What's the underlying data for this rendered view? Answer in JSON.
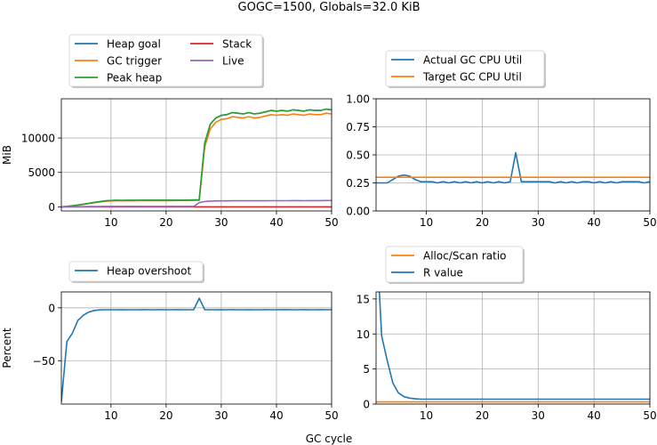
{
  "figure": {
    "title": "GOGC=1500, Globals=32.0 KiB",
    "xlabel": "GC cycle"
  },
  "chart_data": [
    {
      "type": "line",
      "ylabel": "MiB",
      "xlim": [
        1,
        50
      ],
      "ylim": [
        -600,
        15700
      ],
      "xticks": [
        10,
        20,
        30,
        40,
        50
      ],
      "yticks": [
        0,
        5000,
        10000
      ],
      "grid": true,
      "legend": {
        "placement": "outside-top",
        "columns": 2
      },
      "series": [
        {
          "name": "Heap goal",
          "color": "#1f77b4",
          "x": [
            1,
            2,
            3,
            4,
            5,
            6,
            7,
            8,
            9,
            10,
            11,
            12,
            13,
            14,
            15,
            16,
            17,
            18,
            19,
            20,
            21,
            22,
            23,
            24,
            25,
            26,
            27,
            28,
            29,
            30,
            31,
            32,
            33,
            34,
            35,
            36,
            37,
            38,
            39,
            40,
            41,
            42,
            43,
            44,
            45,
            46,
            47,
            48,
            49,
            50
          ],
          "y": [
            0,
            60,
            150,
            260,
            380,
            500,
            640,
            760,
            860,
            920,
            940,
            930,
            950,
            940,
            950,
            960,
            970,
            960,
            970,
            960,
            960,
            970,
            970,
            980,
            990,
            1000,
            9300,
            12000,
            12900,
            13300,
            13400,
            13700,
            13600,
            13500,
            13700,
            13500,
            13600,
            13800,
            14000,
            13900,
            14000,
            13900,
            14100,
            14000,
            13900,
            14100,
            14000,
            14000,
            14200,
            14100
          ]
        },
        {
          "name": "GC trigger",
          "color": "#ff7f0e",
          "x": [
            1,
            2,
            3,
            4,
            5,
            6,
            7,
            8,
            9,
            10,
            11,
            12,
            13,
            14,
            15,
            16,
            17,
            18,
            19,
            20,
            21,
            22,
            23,
            24,
            25,
            26,
            27,
            28,
            29,
            30,
            31,
            32,
            33,
            34,
            35,
            36,
            37,
            38,
            39,
            40,
            41,
            42,
            43,
            44,
            45,
            46,
            47,
            48,
            49,
            50
          ],
          "y": [
            0,
            55,
            140,
            240,
            350,
            470,
            600,
            710,
            800,
            860,
            880,
            870,
            890,
            880,
            890,
            900,
            910,
            900,
            910,
            900,
            900,
            910,
            910,
            920,
            930,
            940,
            8700,
            11300,
            12300,
            12700,
            12800,
            13100,
            13000,
            12900,
            13100,
            12900,
            13000,
            13200,
            13400,
            13300,
            13400,
            13300,
            13500,
            13400,
            13300,
            13500,
            13400,
            13400,
            13600,
            13500
          ]
        },
        {
          "name": "Peak heap",
          "color": "#2ca02c",
          "x": [
            1,
            2,
            3,
            4,
            5,
            6,
            7,
            8,
            9,
            10,
            11,
            12,
            13,
            14,
            15,
            16,
            17,
            18,
            19,
            20,
            21,
            22,
            23,
            24,
            25,
            26,
            27,
            28,
            29,
            30,
            31,
            32,
            33,
            34,
            35,
            36,
            37,
            38,
            39,
            40,
            41,
            42,
            43,
            44,
            45,
            46,
            47,
            48,
            49,
            50
          ],
          "y": [
            0,
            60,
            150,
            260,
            380,
            500,
            640,
            760,
            860,
            920,
            940,
            930,
            950,
            940,
            950,
            960,
            970,
            960,
            970,
            960,
            960,
            970,
            970,
            980,
            990,
            1000,
            9200,
            12000,
            12900,
            13300,
            13400,
            13700,
            13600,
            13500,
            13700,
            13500,
            13600,
            13800,
            14000,
            13900,
            14000,
            13900,
            14100,
            14000,
            13900,
            14100,
            14000,
            14000,
            14200,
            14100
          ]
        },
        {
          "name": "Stack",
          "color": "#d62728",
          "x": [
            1,
            50
          ],
          "y": [
            0,
            0
          ]
        },
        {
          "name": "Live",
          "color": "#9467bd",
          "x": [
            1,
            2,
            3,
            4,
            5,
            6,
            7,
            8,
            9,
            10,
            11,
            12,
            13,
            14,
            15,
            16,
            17,
            18,
            19,
            20,
            21,
            22,
            23,
            24,
            25,
            26,
            27,
            28,
            29,
            30,
            31,
            32,
            33,
            34,
            35,
            36,
            37,
            38,
            39,
            40,
            41,
            42,
            43,
            44,
            45,
            46,
            47,
            48,
            49,
            50
          ],
          "y": [
            0,
            4,
            9,
            16,
            24,
            31,
            40,
            48,
            54,
            58,
            59,
            58,
            59,
            59,
            59,
            60,
            61,
            60,
            61,
            60,
            60,
            61,
            61,
            61,
            62,
            600,
            770,
            830,
            850,
            860,
            860,
            880,
            880,
            870,
            880,
            870,
            870,
            880,
            890,
            890,
            890,
            890,
            900,
            900,
            890,
            900,
            900,
            900,
            910,
            910
          ]
        }
      ]
    },
    {
      "type": "line",
      "ylabel": "",
      "xlim": [
        1,
        50
      ],
      "ylim": [
        0,
        1
      ],
      "xticks": [
        10,
        20,
        30,
        40,
        50
      ],
      "yticks": [
        0.0,
        0.25,
        0.5,
        0.75,
        1.0
      ],
      "ytick_labels": [
        "0.00",
        "0.25",
        "0.50",
        "0.75",
        "1.00"
      ],
      "grid": true,
      "legend": {
        "placement": "outside-top",
        "columns": 1
      },
      "series": [
        {
          "name": "Actual GC CPU Util",
          "color": "#1f77b4",
          "x": [
            1,
            2,
            3,
            4,
            5,
            6,
            7,
            8,
            9,
            10,
            11,
            12,
            13,
            14,
            15,
            16,
            17,
            18,
            19,
            20,
            21,
            22,
            23,
            24,
            25,
            26,
            27,
            28,
            29,
            30,
            31,
            32,
            33,
            34,
            35,
            36,
            37,
            38,
            39,
            40,
            41,
            42,
            43,
            44,
            45,
            46,
            47,
            48,
            49,
            50
          ],
          "y": [
            0.25,
            0.25,
            0.25,
            0.28,
            0.31,
            0.32,
            0.31,
            0.28,
            0.26,
            0.26,
            0.26,
            0.25,
            0.26,
            0.25,
            0.26,
            0.25,
            0.26,
            0.25,
            0.26,
            0.25,
            0.26,
            0.25,
            0.26,
            0.25,
            0.26,
            0.52,
            0.26,
            0.26,
            0.26,
            0.26,
            0.26,
            0.26,
            0.25,
            0.26,
            0.25,
            0.26,
            0.25,
            0.26,
            0.26,
            0.25,
            0.26,
            0.25,
            0.26,
            0.25,
            0.26,
            0.26,
            0.26,
            0.26,
            0.25,
            0.26
          ]
        },
        {
          "name": "Target GC CPU Util",
          "color": "#ff7f0e",
          "x": [
            1,
            50
          ],
          "y": [
            0.3,
            0.3
          ]
        }
      ]
    },
    {
      "type": "line",
      "ylabel": "Percent",
      "xlim": [
        1,
        50
      ],
      "ylim": [
        -91,
        15
      ],
      "xticks": [
        10,
        20,
        30,
        40,
        50
      ],
      "yticks": [
        -50,
        0
      ],
      "ytick_labels": [
        "−50",
        "0"
      ],
      "grid": true,
      "legend": {
        "placement": "outside-top",
        "columns": 1
      },
      "series": [
        {
          "name": "Heap overshoot",
          "color": "#1f77b4",
          "x": [
            1,
            2,
            3,
            4,
            5,
            6,
            7,
            8,
            9,
            10,
            11,
            12,
            13,
            14,
            15,
            16,
            17,
            18,
            19,
            20,
            21,
            22,
            23,
            24,
            25,
            26,
            27,
            28,
            29,
            30,
            31,
            32,
            33,
            34,
            35,
            36,
            37,
            38,
            39,
            40,
            41,
            42,
            43,
            44,
            45,
            46,
            47,
            48,
            49,
            50
          ],
          "y": [
            -89,
            -32,
            -24,
            -12,
            -7,
            -4,
            -2.5,
            -2,
            -1.8,
            -1.8,
            -1.8,
            -1.9,
            -1.8,
            -1.8,
            -1.8,
            -1.7,
            -1.8,
            -1.8,
            -1.7,
            -1.8,
            -1.8,
            -1.7,
            -1.8,
            -1.8,
            -1.7,
            9,
            -1.7,
            -1.8,
            -1.8,
            -1.9,
            -1.8,
            -1.7,
            -1.8,
            -1.8,
            -1.9,
            -1.8,
            -1.8,
            -1.7,
            -1.8,
            -1.8,
            -1.7,
            -1.7,
            -1.8,
            -1.8,
            -1.7,
            -1.8,
            -1.8,
            -1.7,
            -1.8,
            -1.8
          ]
        }
      ]
    },
    {
      "type": "line",
      "ylabel": "",
      "xlim": [
        1,
        50
      ],
      "ylim": [
        0,
        16
      ],
      "xticks": [
        10,
        20,
        30,
        40,
        50
      ],
      "yticks": [
        0,
        5,
        10,
        15
      ],
      "grid": true,
      "legend": {
        "placement": "outside-top",
        "columns": 1
      },
      "series": [
        {
          "name": "Alloc/Scan ratio",
          "color": "#ff7f0e",
          "x": [
            1,
            50
          ],
          "y": [
            0.3,
            0.3
          ]
        },
        {
          "name": "R value",
          "color": "#1f77b4",
          "x": [
            1,
            2,
            3,
            4,
            5,
            6,
            7,
            8,
            9,
            10,
            11,
            12,
            13,
            14,
            15,
            16,
            17,
            18,
            19,
            20,
            21,
            22,
            23,
            24,
            25,
            26,
            27,
            28,
            29,
            30,
            31,
            32,
            33,
            34,
            35,
            36,
            37,
            38,
            39,
            40,
            41,
            42,
            43,
            44,
            45,
            46,
            47,
            48,
            49,
            50
          ],
          "y": [
            25,
            9.7,
            6.2,
            3.0,
            1.6,
            1.05,
            0.85,
            0.75,
            0.7,
            0.7,
            0.7,
            0.7,
            0.7,
            0.7,
            0.7,
            0.7,
            0.7,
            0.7,
            0.7,
            0.7,
            0.7,
            0.7,
            0.7,
            0.7,
            0.7,
            0.7,
            0.7,
            0.7,
            0.7,
            0.7,
            0.7,
            0.7,
            0.7,
            0.7,
            0.7,
            0.7,
            0.7,
            0.7,
            0.7,
            0.7,
            0.7,
            0.7,
            0.7,
            0.7,
            0.7,
            0.7,
            0.7,
            0.7,
            0.7,
            0.7
          ]
        }
      ]
    }
  ]
}
